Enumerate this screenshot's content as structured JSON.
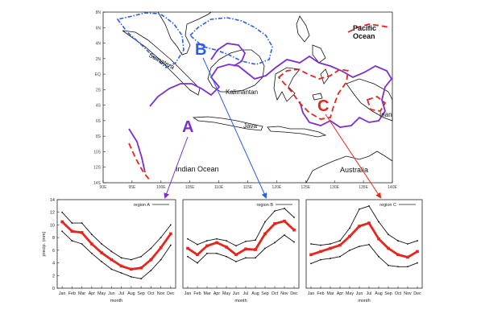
{
  "map": {
    "lat_ticks": [
      "8N",
      "6N",
      "4N",
      "2N",
      "EQ",
      "2S",
      "4S",
      "6S",
      "8S",
      "10S",
      "12S",
      "14S"
    ],
    "lon_ticks": [
      "90E",
      "95E",
      "100E",
      "105E",
      "110E",
      "115E",
      "120E",
      "125E",
      "130E",
      "135E",
      "140E"
    ],
    "place_labels": {
      "sumatera": "Sumatera",
      "kalimantan": "Kalimantan",
      "java": "Java",
      "irian": "Irian",
      "indian_ocean": "Indian Ocean",
      "australia": "Australia",
      "pacific_line1": "Pacific",
      "pacific_line2": "Ocean"
    },
    "regions": {
      "A": {
        "label": "A",
        "color": "#7b2fd0"
      },
      "B": {
        "label": "B",
        "color": "#2b5ee8"
      },
      "C": {
        "label": "C",
        "color": "#e8241c"
      }
    }
  },
  "chart_data": [
    {
      "type": "line",
      "legend": "region A",
      "xlabel": "month",
      "ylabel": "precip. (mm)",
      "ylim": [
        0,
        14
      ],
      "yticks": [
        0,
        2,
        4,
        6,
        8,
        10,
        12,
        14
      ],
      "categories": [
        "Jan",
        "Feb",
        "Mar",
        "Apr",
        "May",
        "Jun",
        "Jul",
        "Aug",
        "Sep",
        "Oct",
        "Nov",
        "Dec"
      ],
      "series": [
        {
          "role": "upper",
          "color": "#111111",
          "values": [
            12.0,
            10.3,
            10.3,
            8.5,
            7.0,
            5.8,
            4.8,
            4.5,
            5.0,
            6.3,
            8.0,
            10.0
          ]
        },
        {
          "role": "mean",
          "color": "#e8241c",
          "values": [
            10.5,
            9.0,
            8.8,
            7.0,
            5.6,
            4.5,
            3.5,
            3.0,
            3.2,
            4.5,
            6.4,
            8.6
          ]
        },
        {
          "role": "lower",
          "color": "#111111",
          "values": [
            9.0,
            7.5,
            7.0,
            5.5,
            4.2,
            3.0,
            2.4,
            1.8,
            1.5,
            2.8,
            4.5,
            6.8
          ]
        }
      ]
    },
    {
      "type": "line",
      "legend": "region B",
      "xlabel": "month",
      "ylabel": "",
      "ylim": [
        0,
        14
      ],
      "categories": [
        "Jan",
        "Feb",
        "Mar",
        "Apr",
        "May",
        "Jun",
        "Jul",
        "Aug",
        "Sep",
        "Oct",
        "Nov",
        "Dec"
      ],
      "series": [
        {
          "role": "upper",
          "color": "#111111",
          "values": [
            7.8,
            6.9,
            7.5,
            7.8,
            7.5,
            6.7,
            7.4,
            7.6,
            10.5,
            12.2,
            12.6,
            11.2
          ]
        },
        {
          "role": "mean",
          "color": "#e8241c",
          "values": [
            6.3,
            5.3,
            6.7,
            7.2,
            6.5,
            5.3,
            6.2,
            6.1,
            8.6,
            10.2,
            10.6,
            9.2
          ]
        },
        {
          "role": "lower",
          "color": "#111111",
          "values": [
            5.0,
            4.0,
            5.5,
            5.5,
            5.0,
            4.2,
            4.8,
            4.8,
            6.3,
            7.2,
            8.4,
            7.3
          ]
        }
      ]
    },
    {
      "type": "line",
      "legend": "region C",
      "xlabel": "month",
      "ylabel": "",
      "ylim": [
        0,
        14
      ],
      "categories": [
        "Jan",
        "Feb",
        "Mar",
        "Apr",
        "May",
        "Jun",
        "Jul",
        "Aug",
        "Sep",
        "Oct",
        "Nov",
        "Dec"
      ],
      "series": [
        {
          "role": "upper",
          "color": "#111111",
          "values": [
            7.0,
            6.8,
            7.0,
            7.5,
            9.5,
            12.5,
            13.0,
            10.5,
            8.5,
            7.5,
            7.0,
            7.5
          ]
        },
        {
          "role": "mean",
          "color": "#e8241c",
          "values": [
            5.3,
            5.8,
            6.3,
            6.8,
            8.2,
            9.8,
            10.3,
            7.8,
            6.3,
            5.3,
            4.9,
            5.8
          ]
        },
        {
          "role": "lower",
          "color": "#111111",
          "values": [
            3.9,
            4.5,
            4.7,
            5.0,
            6.0,
            6.6,
            6.9,
            5.0,
            3.6,
            3.4,
            3.4,
            4.0
          ]
        }
      ]
    }
  ]
}
